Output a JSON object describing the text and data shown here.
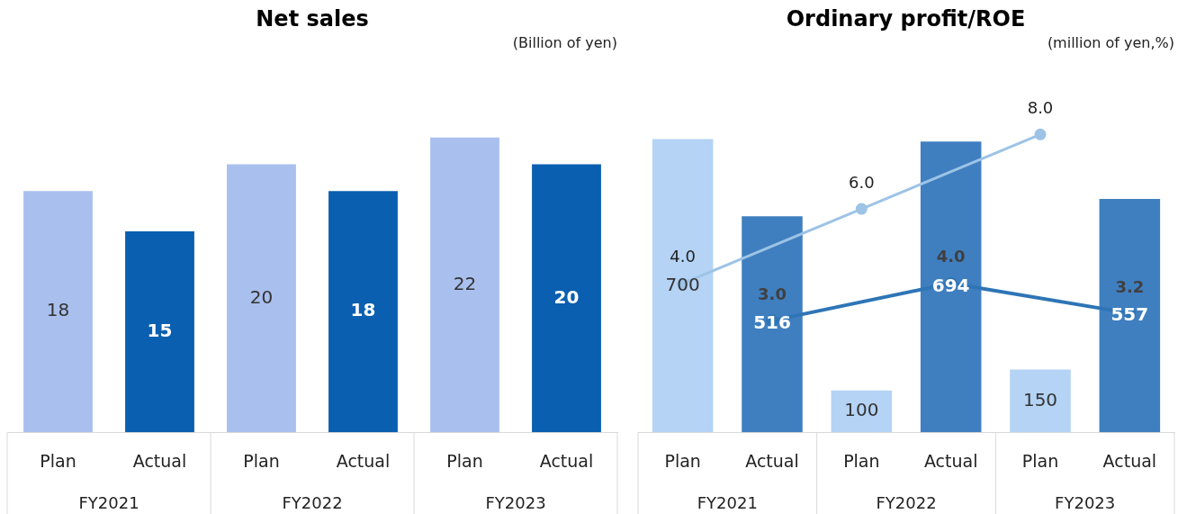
{
  "chart_data": [
    {
      "type": "bar",
      "title": "Net sales",
      "subtitle": "(Billion of yen)",
      "categories": [
        "Plan",
        "Actual",
        "Plan",
        "Actual",
        "Plan",
        "Actual"
      ],
      "series": [
        {
          "values": [
            18,
            15,
            20,
            18,
            22,
            20
          ],
          "colors": [
            "#a9bfee",
            "#0a5fb0",
            "#a9bfee",
            "#0a5fb0",
            "#a9bfee",
            "#0a5fb0"
          ]
        }
      ],
      "data_labels": true,
      "grid": false,
      "legend": false,
      "tick_labels": "x",
      "annotations": [
        "FY2021",
        "FY2022",
        "FY2023"
      ]
    },
    {
      "type": "bar",
      "title": "Ordinary profit/ROE",
      "subtitle": "(million of yen,%)",
      "categories": [
        "Plan",
        "Actual",
        "Plan",
        "Actual",
        "Plan",
        "Actual"
      ],
      "series": [
        {
          "values": [
            700,
            516,
            100,
            694,
            150,
            557
          ],
          "colors": [
            "#b4d3f5",
            "#3f7fc0",
            "#b4d3f5",
            "#3f7fc0",
            "#b4d3f5",
            "#3f7fc0"
          ]
        },
        {
          "type": "line",
          "axis": "y2",
          "color": "#9dc3e6",
          "values": [
            4.0,
            null,
            6.0,
            null,
            8.0,
            null
          ],
          "value_labels": [
            "4.0",
            null,
            "6.0",
            null,
            "8.0",
            null
          ]
        },
        {
          "type": "line",
          "axis": "y2",
          "color": "#2e75b6",
          "values": [
            null,
            3.0,
            null,
            4.0,
            null,
            3.2
          ],
          "value_labels": [
            null,
            "3.0",
            null,
            "4.0",
            null,
            "3.2"
          ]
        }
      ],
      "data_labels": true,
      "grid": false,
      "legend": false,
      "tick_labels": "x",
      "marker": "circle",
      "annotations": [
        "FY2021",
        "FY2022",
        "FY2023"
      ]
    }
  ]
}
